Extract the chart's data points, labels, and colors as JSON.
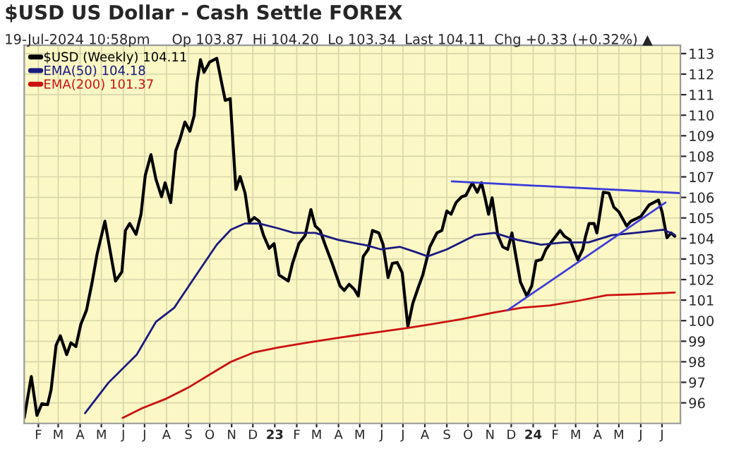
{
  "chart_data": {
    "type": "line",
    "title": "$USD US Dollar - Cash Settle FOREX",
    "subtitle": "19-Jul-2024 10:58pm     Op 103.87  Hi 104.20  Lo 103.34  Last 104.11  Chg +0.33 (+0.32%) ▲",
    "xlim": [
      "2022-01-12",
      "2024-07-27"
    ],
    "ylim": [
      95,
      113.4
    ],
    "yticks": [
      96,
      97,
      98,
      99,
      100,
      101,
      102,
      103,
      104,
      105,
      106,
      107,
      108,
      109,
      110,
      111,
      112,
      113
    ],
    "xticks": [
      {
        "value": "2022-02-01",
        "label": "F"
      },
      {
        "value": "2022-03-01",
        "label": "M"
      },
      {
        "value": "2022-04-01",
        "label": "A"
      },
      {
        "value": "2022-05-01",
        "label": "M"
      },
      {
        "value": "2022-06-01",
        "label": "J"
      },
      {
        "value": "2022-07-01",
        "label": "J"
      },
      {
        "value": "2022-08-01",
        "label": "A"
      },
      {
        "value": "2022-09-01",
        "label": "S"
      },
      {
        "value": "2022-10-01",
        "label": "O"
      },
      {
        "value": "2022-11-01",
        "label": "N"
      },
      {
        "value": "2022-12-01",
        "label": "D"
      },
      {
        "value": "2023-01-01",
        "label": "23"
      },
      {
        "value": "2023-02-01",
        "label": "F"
      },
      {
        "value": "2023-03-01",
        "label": "M"
      },
      {
        "value": "2023-04-01",
        "label": "A"
      },
      {
        "value": "2023-05-01",
        "label": "M"
      },
      {
        "value": "2023-06-01",
        "label": "J"
      },
      {
        "value": "2023-07-01",
        "label": "J"
      },
      {
        "value": "2023-08-01",
        "label": "A"
      },
      {
        "value": "2023-09-01",
        "label": "S"
      },
      {
        "value": "2023-10-01",
        "label": "O"
      },
      {
        "value": "2023-11-01",
        "label": "N"
      },
      {
        "value": "2023-12-01",
        "label": "D"
      },
      {
        "value": "2024-01-01",
        "label": "24"
      },
      {
        "value": "2024-02-01",
        "label": "F"
      },
      {
        "value": "2024-03-01",
        "label": "M"
      },
      {
        "value": "2024-04-01",
        "label": "A"
      },
      {
        "value": "2024-05-01",
        "label": "M"
      },
      {
        "value": "2024-06-01",
        "label": "J"
      },
      {
        "value": "2024-07-01",
        "label": "J"
      }
    ],
    "grid": true,
    "legend": "top left",
    "series": [
      {
        "name": "$USD (Weekly) 104.11",
        "color": "#000000",
        "x": [
          "2022-01-12",
          "2022-01-22",
          "2022-01-30",
          "2022-02-06",
          "2022-02-14",
          "2022-02-19",
          "2022-02-26",
          "2022-03-04",
          "2022-03-13",
          "2022-03-19",
          "2022-03-26",
          "2022-04-02",
          "2022-04-10",
          "2022-04-18",
          "2022-04-25",
          "2022-05-06",
          "2022-05-13",
          "2022-05-21",
          "2022-05-30",
          "2022-06-04",
          "2022-06-10",
          "2022-06-19",
          "2022-06-26",
          "2022-07-02",
          "2022-07-10",
          "2022-07-17",
          "2022-07-25",
          "2022-07-30",
          "2022-08-07",
          "2022-08-14",
          "2022-08-20",
          "2022-08-27",
          "2022-09-03",
          "2022-09-09",
          "2022-09-13",
          "2022-09-18",
          "2022-09-23",
          "2022-10-01",
          "2022-10-11",
          "2022-10-18",
          "2022-10-23",
          "2022-10-30",
          "2022-11-07",
          "2022-11-13",
          "2022-11-20",
          "2022-11-26",
          "2022-12-03",
          "2022-12-10",
          "2022-12-16",
          "2022-12-24",
          "2022-12-31",
          "2023-01-07",
          "2023-01-20",
          "2023-01-26",
          "2023-02-04",
          "2023-02-13",
          "2023-02-21",
          "2023-02-27",
          "2023-03-06",
          "2023-03-13",
          "2023-03-23",
          "2023-04-03",
          "2023-04-09",
          "2023-04-16",
          "2023-04-23",
          "2023-04-29",
          "2023-05-06",
          "2023-05-13",
          "2023-05-19",
          "2023-05-28",
          "2023-06-03",
          "2023-06-10",
          "2023-06-16",
          "2023-06-23",
          "2023-06-30",
          "2023-07-08",
          "2023-07-15",
          "2023-07-23",
          "2023-07-29",
          "2023-08-08",
          "2023-08-18",
          "2023-08-25",
          "2023-09-01",
          "2023-09-07",
          "2023-09-14",
          "2023-09-22",
          "2023-09-28",
          "2023-10-07",
          "2023-10-14",
          "2023-10-20",
          "2023-10-25",
          "2023-10-30",
          "2023-11-04",
          "2023-11-12",
          "2023-11-19",
          "2023-11-26",
          "2023-12-02",
          "2023-12-07",
          "2023-12-14",
          "2023-12-23",
          "2023-12-30",
          "2024-01-05",
          "2024-01-13",
          "2024-01-19",
          "2024-01-29",
          "2024-02-08",
          "2024-02-14",
          "2024-02-22",
          "2024-03-04",
          "2024-03-11",
          "2024-03-15",
          "2024-03-20",
          "2024-03-27",
          "2024-03-31",
          "2024-04-09",
          "2024-04-17",
          "2024-04-24",
          "2024-05-01",
          "2024-05-12",
          "2024-05-18",
          "2024-06-01",
          "2024-06-13",
          "2024-06-26",
          "2024-07-01",
          "2024-07-08",
          "2024-07-14",
          "2024-07-19"
        ],
        "values": [
          95.27,
          97.28,
          95.39,
          95.96,
          95.91,
          96.64,
          98.8,
          99.26,
          98.35,
          98.92,
          98.74,
          99.83,
          100.51,
          101.88,
          103.25,
          104.84,
          103.47,
          101.93,
          102.38,
          104.39,
          104.73,
          104.2,
          105.18,
          107.07,
          108.08,
          106.89,
          106.03,
          106.71,
          105.75,
          108.26,
          108.83,
          109.67,
          109.22,
          109.97,
          111.56,
          112.7,
          112.09,
          112.59,
          112.77,
          111.56,
          110.72,
          110.81,
          106.39,
          107.01,
          106.21,
          104.8,
          105.02,
          104.84,
          104.16,
          103.52,
          103.75,
          102.22,
          101.93,
          102.79,
          103.75,
          104.16,
          105.41,
          104.61,
          104.39,
          103.7,
          102.79,
          101.7,
          101.47,
          101.77,
          101.54,
          101.2,
          103.13,
          103.47,
          104.39,
          104.27,
          103.7,
          102.1,
          102.79,
          102.83,
          102.33,
          99.71,
          100.85,
          101.65,
          102.22,
          103.59,
          104.27,
          104.39,
          105.34,
          105.18,
          105.75,
          106.03,
          106.1,
          106.71,
          106.25,
          106.71,
          105.98,
          105.18,
          105.98,
          104.16,
          103.59,
          103.47,
          104.27,
          103.25,
          101.88,
          101.2,
          101.7,
          102.9,
          102.98,
          103.47,
          103.93,
          104.39,
          104.11,
          103.93,
          102.97,
          103.47,
          104.11,
          104.73,
          104.73,
          104.27,
          106.25,
          106.21,
          105.52,
          105.3,
          104.61,
          104.84,
          105.07,
          105.64,
          105.87,
          105.3,
          104.04,
          104.27,
          104.11
        ]
      },
      {
        "name": "EMA(50) 104.18",
        "color": "#1a1a80",
        "x": [
          "2022-04-08",
          "2022-05-11",
          "2022-06-20",
          "2022-07-17",
          "2022-08-12",
          "2022-09-14",
          "2022-10-11",
          "2022-10-31",
          "2022-11-20",
          "2022-12-10",
          "2023-01-05",
          "2023-01-28",
          "2023-02-27",
          "2023-04-01",
          "2023-05-11",
          "2023-05-31",
          "2023-06-27",
          "2023-07-17",
          "2023-08-05",
          "2023-09-01",
          "2023-10-11",
          "2023-11-07",
          "2023-12-10",
          "2024-01-12",
          "2024-02-14",
          "2024-03-19",
          "2024-04-21",
          "2024-05-24",
          "2024-07-03",
          "2024-07-19"
        ],
        "values": [
          95.5,
          96.98,
          98.35,
          99.94,
          100.63,
          102.33,
          103.7,
          104.43,
          104.73,
          104.73,
          104.5,
          104.27,
          104.27,
          103.93,
          103.66,
          103.47,
          103.59,
          103.36,
          103.13,
          103.47,
          104.16,
          104.27,
          103.93,
          103.7,
          103.81,
          103.81,
          104.16,
          104.27,
          104.43,
          104.18
        ]
      },
      {
        "name": "EMA(200) 101.37",
        "color": "#cc1111",
        "x": [
          "2022-05-31",
          "2022-06-27",
          "2022-07-30",
          "2022-09-01",
          "2022-10-04",
          "2022-10-31",
          "2022-12-03",
          "2023-01-05",
          "2023-02-14",
          "2023-03-26",
          "2023-05-11",
          "2023-07-09",
          "2023-08-11",
          "2023-09-20",
          "2023-11-07",
          "2023-12-16",
          "2024-01-25",
          "2024-03-05",
          "2024-04-14",
          "2024-05-24",
          "2024-07-19"
        ],
        "values": [
          95.27,
          95.73,
          96.18,
          96.75,
          97.44,
          98.0,
          98.46,
          98.69,
          98.92,
          99.14,
          99.37,
          99.65,
          99.83,
          100.06,
          100.4,
          100.63,
          100.74,
          100.97,
          101.24,
          101.28,
          101.37
        ]
      },
      {
        "color": "#3b3bd9",
        "x": [
          "2023-09-08",
          "2024-07-26"
        ],
        "values": [
          106.78,
          106.21
        ]
      },
      {
        "color": "#3b3bd9",
        "x": [
          "2023-11-26",
          "2024-07-06"
        ],
        "values": [
          100.51,
          105.75
        ]
      }
    ]
  }
}
